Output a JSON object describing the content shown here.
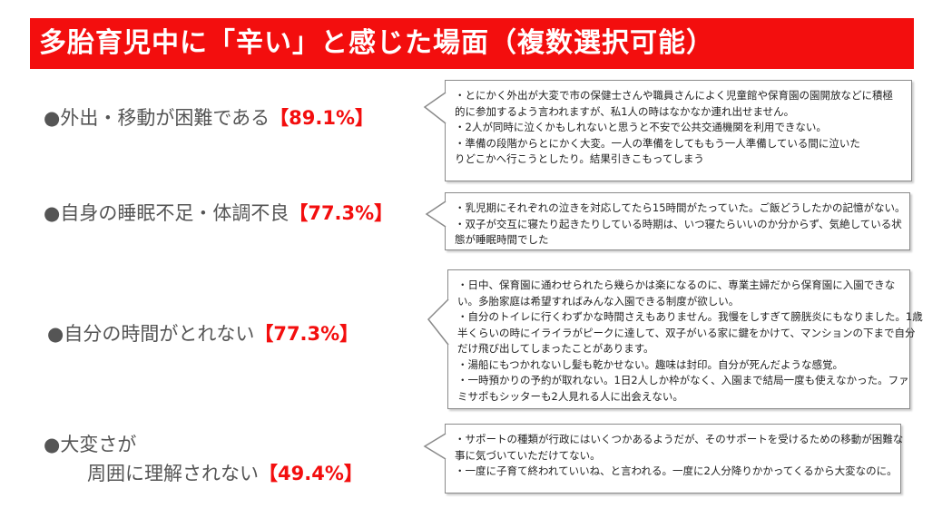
{
  "title": "多胎育児中に「辛い」と感じた場面（複数選択可能）",
  "accent_color": "#f30e0e",
  "items": [
    {
      "label": "●外出・移動が困難である",
      "label2": "",
      "percent": "【89.1%】",
      "comments": [
        "・とにかく外出が大変で市の保健士さんや職員さんによく児童館や保育園の園開放などに積極",
        "的に参加するよう言われますが、私1人の時はなかなか連れ出せません。",
        "・2人が同時に泣くかもしれないと思うと不安で公共交通機関を利用できない。",
        "・準備の段階からとにかく大変。一人の準備をしてももう一人準備している間に泣いた",
        "りどこかへ行こうとしたり。結果引きこもってしまう"
      ]
    },
    {
      "label": "●自身の睡眠不足・体調不良",
      "label2": "",
      "percent": "【77.3%】",
      "comments": [
        "・乳児期にそれぞれの泣きを対応してたら15時間がたっていた。ご飯どうしたかの記憶がない。",
        "・双子が交互に寝たり起きたりしている時期は、いつ寝たらいいのか分からず、気絶している状",
        "態が睡眠時間でした"
      ]
    },
    {
      "label": "●自分の時間がとれない",
      "label2": "",
      "percent": "【77.3%】",
      "comments": [
        "・日中、保育園に通わせられたら幾らかは楽になるのに、専業主婦だから保育園に入園できな",
        "い。多胎家庭は希望すればみんな入園できる制度が欲しい。",
        "・自分のトイレに行くわずかな時間さえもありません。我慢をしすぎて膀胱炎にもなりました。1歳",
        "半くらいの時にイライラがピークに達して、双子がいる家に鍵をかけて、マンションの下まで自分",
        "だけ飛び出してしまったことがあります。",
        "・湯船にもつかれないし髪も乾かせない。趣味は封印。自分が死んだような感覚。",
        "・一時預かりの予約が取れない。1日2人しか枠がなく、入園まで結局一度も使えなかった。ファ",
        "ミサポもシッターも2人見れる人に出会えない。"
      ]
    },
    {
      "label": "●大変さが",
      "label2": "周囲に理解されない",
      "percent": "【49.4%】",
      "comments": [
        "・サポートの種類が行政にはいくつかあるようだが、そのサポートを受けるための移動が困難な",
        "事に気づいていただけてない。",
        "・一度に子育て終われていいね、と言われる。一度に2人分降りかかってくるから大変なのに。"
      ]
    }
  ]
}
